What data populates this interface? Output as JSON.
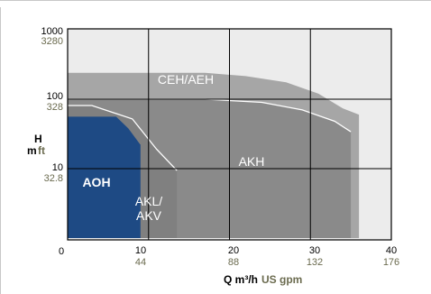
{
  "chart_data": {
    "type": "area",
    "x_axis": {
      "title": "Q  m³/h",
      "title_secondary": "US gpm",
      "ticks": [
        {
          "value": 0,
          "label": "0",
          "sublabel": ""
        },
        {
          "value": 10,
          "label": "10",
          "sublabel": "44"
        },
        {
          "value": 20,
          "label": "20",
          "sublabel": "88"
        },
        {
          "value": 30,
          "label": "30",
          "sublabel": "132"
        },
        {
          "value": 40,
          "label": "40",
          "sublabel": "176"
        }
      ],
      "range": [
        0,
        40
      ]
    },
    "y_axis": {
      "title": "H",
      "title_unit_primary": "m",
      "title_unit_secondary": "ft",
      "scale": "log",
      "range": [
        1,
        1000
      ],
      "ticks": [
        {
          "value": 10,
          "label": "10",
          "sublabel": "32.8"
        },
        {
          "value": 100,
          "label": "100",
          "sublabel": "328"
        },
        {
          "value": 1000,
          "label": "1000",
          "sublabel": "3280"
        }
      ],
      "bottom_label": "0"
    },
    "grid": true,
    "series": [
      {
        "name": "CEH/AEH",
        "color": "#a6a6a6",
        "points": [
          [
            0,
            240
          ],
          [
            17,
            240
          ],
          [
            22,
            215
          ],
          [
            27,
            175
          ],
          [
            31,
            120
          ],
          [
            34,
            74
          ],
          [
            36,
            60
          ],
          [
            36,
            1
          ],
          [
            0,
            1
          ]
        ]
      },
      {
        "name": "AKH",
        "color": "#8a8a8a",
        "points": [
          [
            0,
            100
          ],
          [
            17,
            100
          ],
          [
            24,
            90
          ],
          [
            29,
            70
          ],
          [
            33,
            48
          ],
          [
            35,
            34
          ],
          [
            35,
            1
          ],
          [
            0,
            1
          ]
        ]
      },
      {
        "name": "AKL/\nAKV",
        "color": "#808080",
        "points": [
          [
            0,
            81
          ],
          [
            3,
            81
          ],
          [
            8,
            52
          ],
          [
            11,
            19
          ],
          [
            13.5,
            9.4
          ],
          [
            13.5,
            1
          ],
          [
            0,
            1
          ]
        ]
      },
      {
        "name": "AOH",
        "color": "#1e4a84",
        "points": [
          [
            0,
            56
          ],
          [
            6,
            56
          ],
          [
            7.5,
            38
          ],
          [
            9,
            22
          ],
          [
            9,
            1
          ],
          [
            0,
            1
          ]
        ]
      }
    ]
  }
}
